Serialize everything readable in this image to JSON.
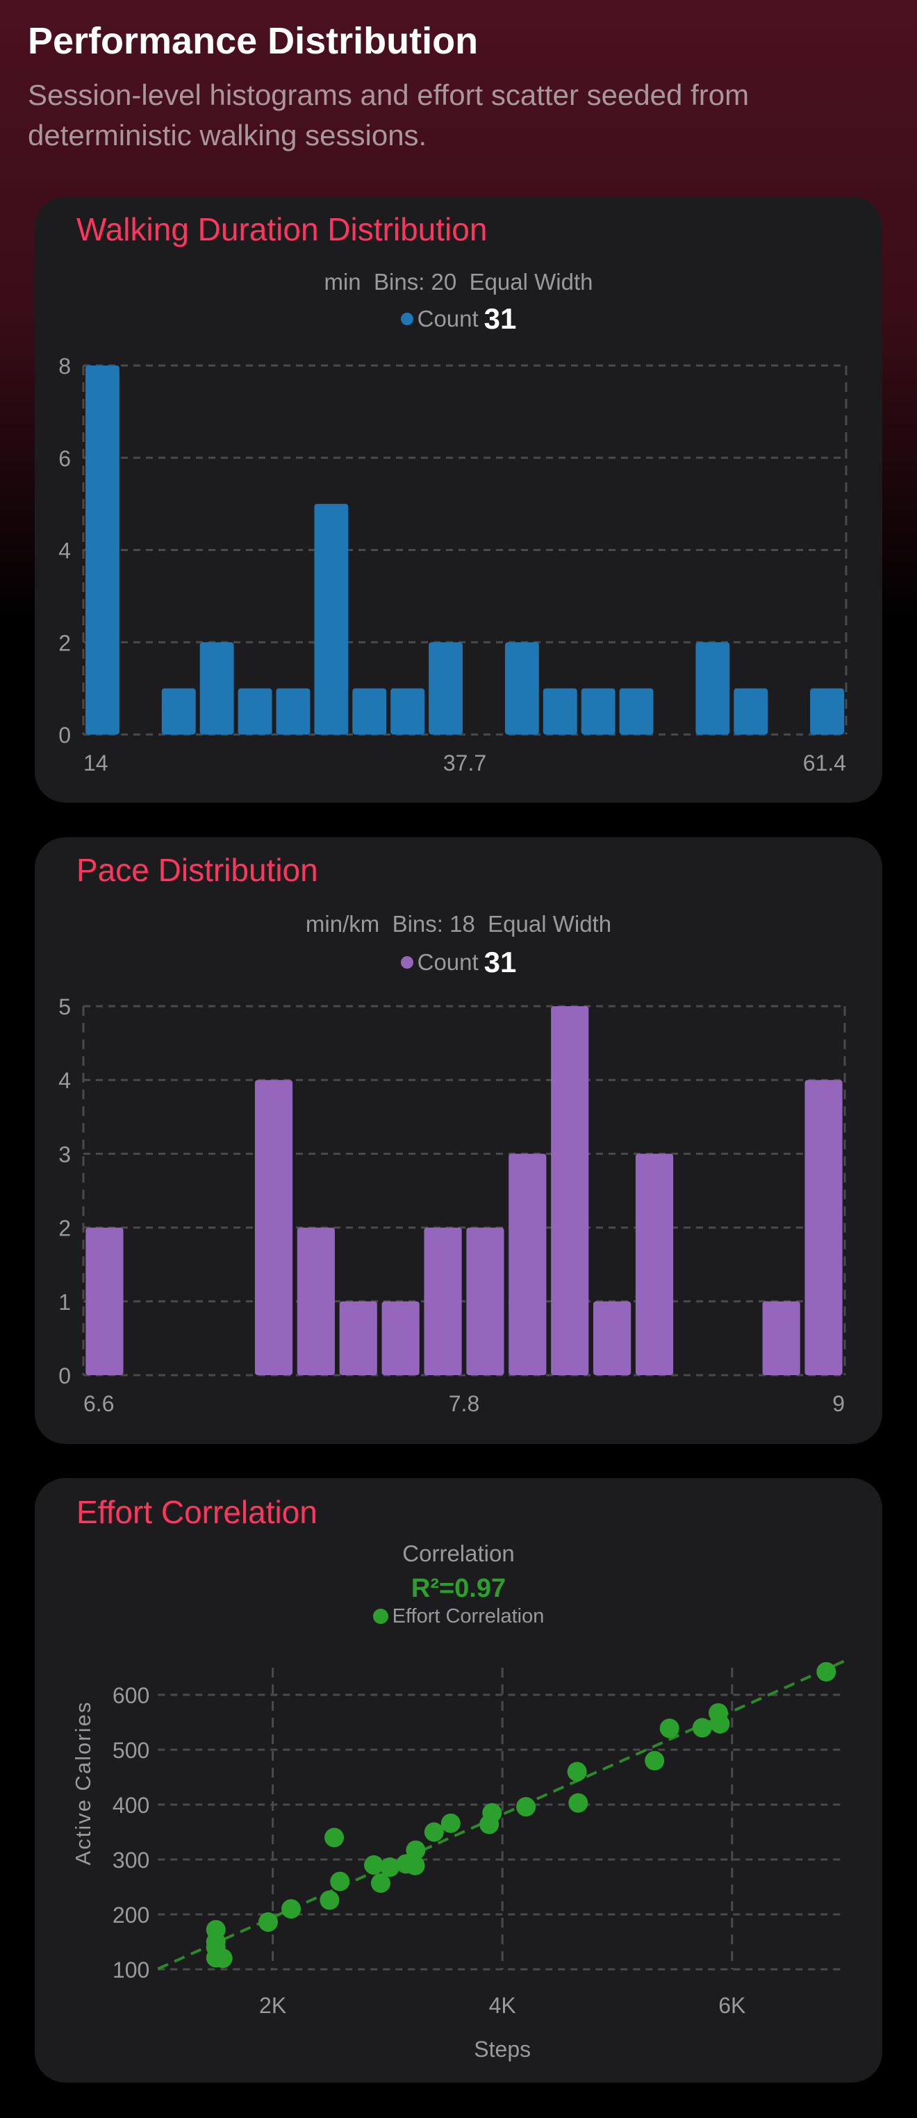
{
  "header": {
    "title": "Performance Distribution",
    "subtitle": "Session-level histograms and effort scatter seeded from deterministic walking sessions."
  },
  "colors": {
    "accent": "#ff375f",
    "duration": "#1f77b4",
    "pace": "#9467bd",
    "effort": "#2ca02c"
  },
  "cards": {
    "duration": {
      "title": "Walking Duration Distribution",
      "subtitle": "min  Bins: 20  Equal Width",
      "legend_label": "Count",
      "legend_value": "31"
    },
    "pace": {
      "title": "Pace Distribution",
      "subtitle": "min/km  Bins: 18  Equal Width",
      "legend_label": "Count",
      "legend_value": "31"
    },
    "effort": {
      "title": "Effort Correlation",
      "subtitle": "Correlation",
      "r2": "R²=0.97",
      "legend_label": "Effort Correlation"
    }
  },
  "chart_data": [
    {
      "type": "bar",
      "unit": "min",
      "bins": 20,
      "values": [
        8,
        0,
        1,
        2,
        1,
        1,
        5,
        1,
        1,
        2,
        0,
        2,
        1,
        1,
        1,
        0,
        2,
        1,
        0,
        1
      ],
      "xlim": [
        14,
        61.4
      ],
      "x_tick_labels": [
        "14",
        "37.7",
        "61.4"
      ],
      "ylim": [
        0,
        8
      ],
      "y_ticks": [
        0,
        2,
        4,
        6,
        8
      ],
      "grid": true,
      "color": "#1f77b4"
    },
    {
      "type": "bar",
      "unit": "min/km",
      "bins": 18,
      "values": [
        2,
        0,
        0,
        0,
        4,
        2,
        1,
        1,
        2,
        2,
        3,
        5,
        1,
        3,
        0,
        0,
        1,
        4
      ],
      "xlim": [
        6.6,
        9
      ],
      "x_tick_labels": [
        "6.6",
        "7.8",
        "9"
      ],
      "ylim": [
        0,
        5
      ],
      "y_ticks": [
        0,
        1,
        2,
        3,
        4,
        5
      ],
      "grid": true,
      "color": "#9467bd"
    },
    {
      "type": "scatter",
      "xlabel": "Steps",
      "ylabel": "Active Calories",
      "xlim": [
        1000,
        6950
      ],
      "ylim": [
        100,
        670
      ],
      "x_ticks": [
        2000,
        4000,
        6000
      ],
      "x_tick_labels": [
        "2K",
        "4K",
        "6K"
      ],
      "y_ticks": [
        100,
        200,
        300,
        400,
        500,
        600
      ],
      "y_tick_labels": [
        "100",
        "200",
        "300",
        "400",
        "500",
        "600"
      ],
      "grid": true,
      "color": "#2ca02c",
      "trendline": {
        "slope": 0.0938,
        "intercept": 7
      },
      "points": [
        [
          6820,
          642
        ],
        [
          5880,
          567
        ],
        [
          5895,
          547
        ],
        [
          5740,
          540
        ],
        [
          5455,
          539
        ],
        [
          5325,
          480
        ],
        [
          4650,
          460
        ],
        [
          4660,
          403
        ],
        [
          4205,
          396
        ],
        [
          3910,
          385
        ],
        [
          3885,
          364
        ],
        [
          3550,
          366
        ],
        [
          3405,
          350
        ],
        [
          2535,
          340
        ],
        [
          3245,
          317
        ],
        [
          3240,
          289
        ],
        [
          3160,
          292
        ],
        [
          3020,
          286
        ],
        [
          2880,
          290
        ],
        [
          2940,
          257
        ],
        [
          2585,
          260
        ],
        [
          2495,
          226
        ],
        [
          2160,
          210
        ],
        [
          1960,
          186
        ],
        [
          1505,
          172
        ],
        [
          1505,
          150
        ],
        [
          1505,
          140
        ],
        [
          1505,
          121
        ],
        [
          1565,
          120
        ]
      ]
    }
  ]
}
